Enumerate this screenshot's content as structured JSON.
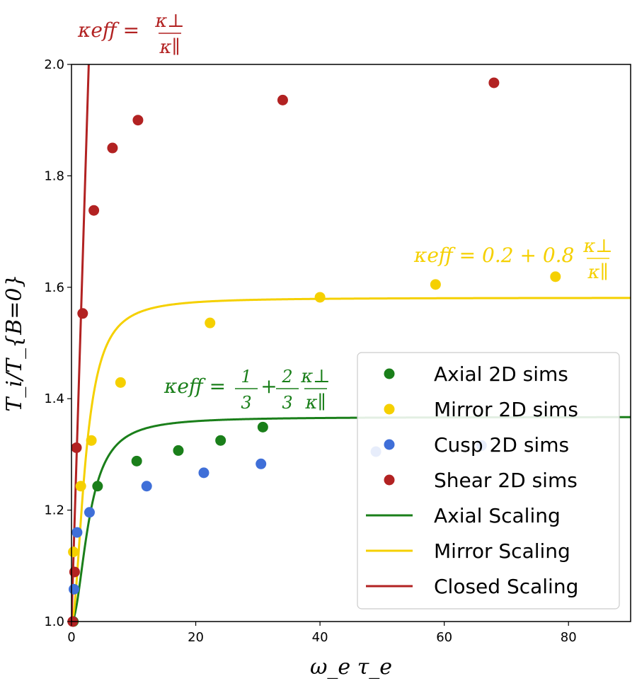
{
  "chart_data": {
    "type": "scatter",
    "xlabel": "ω_e τ_e",
    "ylabel": "T_i/T_{B=0}",
    "xlim": [
      0,
      90
    ],
    "ylim": [
      1.0,
      2.0
    ],
    "xticks": [
      0,
      20,
      40,
      60,
      80
    ],
    "yticks": [
      1.0,
      1.2,
      1.4,
      1.6,
      1.8,
      2.0
    ],
    "xtick_labels": [
      "0",
      "20",
      "40",
      "60",
      "80"
    ],
    "ytick_labels": [
      "1.0",
      "1.2",
      "1.4",
      "1.6",
      "1.8",
      "2.0"
    ],
    "grid": false,
    "legend_position": "lower-right",
    "scatter_series": [
      {
        "name": "Axial 2D sims",
        "color": "#1a7f1a",
        "points": [
          [
            0.3,
            1.0
          ],
          [
            4.2,
            1.243
          ],
          [
            10.5,
            1.288
          ],
          [
            17.2,
            1.307
          ],
          [
            24.0,
            1.325
          ],
          [
            30.8,
            1.349
          ]
        ]
      },
      {
        "name": "Mirror 2D sims",
        "color": "#f5d000",
        "points": [
          [
            0.3,
            1.125
          ],
          [
            1.5,
            1.243
          ],
          [
            3.2,
            1.325
          ],
          [
            7.9,
            1.429
          ],
          [
            22.3,
            1.536
          ],
          [
            40.0,
            1.582
          ],
          [
            58.6,
            1.605
          ],
          [
            77.9,
            1.619
          ]
        ]
      },
      {
        "name": "Cusp 2D sims",
        "color": "#3f6fd8",
        "points": [
          [
            0.4,
            1.058
          ],
          [
            0.9,
            1.16
          ],
          [
            2.9,
            1.196
          ],
          [
            12.1,
            1.243
          ],
          [
            21.3,
            1.267
          ],
          [
            30.5,
            1.283
          ],
          [
            49.0,
            1.305
          ],
          [
            66.0,
            1.316
          ]
        ]
      },
      {
        "name": "Shear 2D sims",
        "color": "#b22222",
        "points": [
          [
            0.2,
            1.0
          ],
          [
            0.5,
            1.089
          ],
          [
            0.8,
            1.312
          ],
          [
            1.8,
            1.553
          ],
          [
            3.6,
            1.738
          ],
          [
            6.6,
            1.85
          ],
          [
            10.7,
            1.9
          ],
          [
            34.0,
            1.936
          ],
          [
            68.0,
            1.967
          ]
        ]
      }
    ],
    "line_series": [
      {
        "name": "Axial Scaling",
        "color": "#1a7f1a",
        "kind": "saturating",
        "a": 0.3333,
        "b": 0.6667,
        "x0": 2.0
      },
      {
        "name": "Mirror Scaling",
        "color": "#f5d000",
        "kind": "saturating",
        "a": 0.2,
        "b": 0.8,
        "x0": 1.35
      },
      {
        "name": "Closed Scaling",
        "color": "#b22222",
        "kind": "steep",
        "k": 3.3,
        "p": 0.55
      }
    ],
    "annotations": [
      {
        "id": "closed",
        "color": "#b22222",
        "lhs": "κeff =",
        "num": "κ⊥",
        "den": "κ∥"
      },
      {
        "id": "mirror",
        "color": "#f5d000",
        "lhs": "κeff = 0.2 + 0.8",
        "num": "κ⊥",
        "den": "κ∥"
      },
      {
        "id": "axial",
        "color": "#1a7f1a",
        "lhs": "κeff =",
        "frac1_num": "1",
        "frac1_den": "3",
        "plus": "+",
        "frac2_num": "2",
        "frac2_den": "3",
        "num": "κ⊥",
        "den": "κ∥"
      }
    ]
  }
}
